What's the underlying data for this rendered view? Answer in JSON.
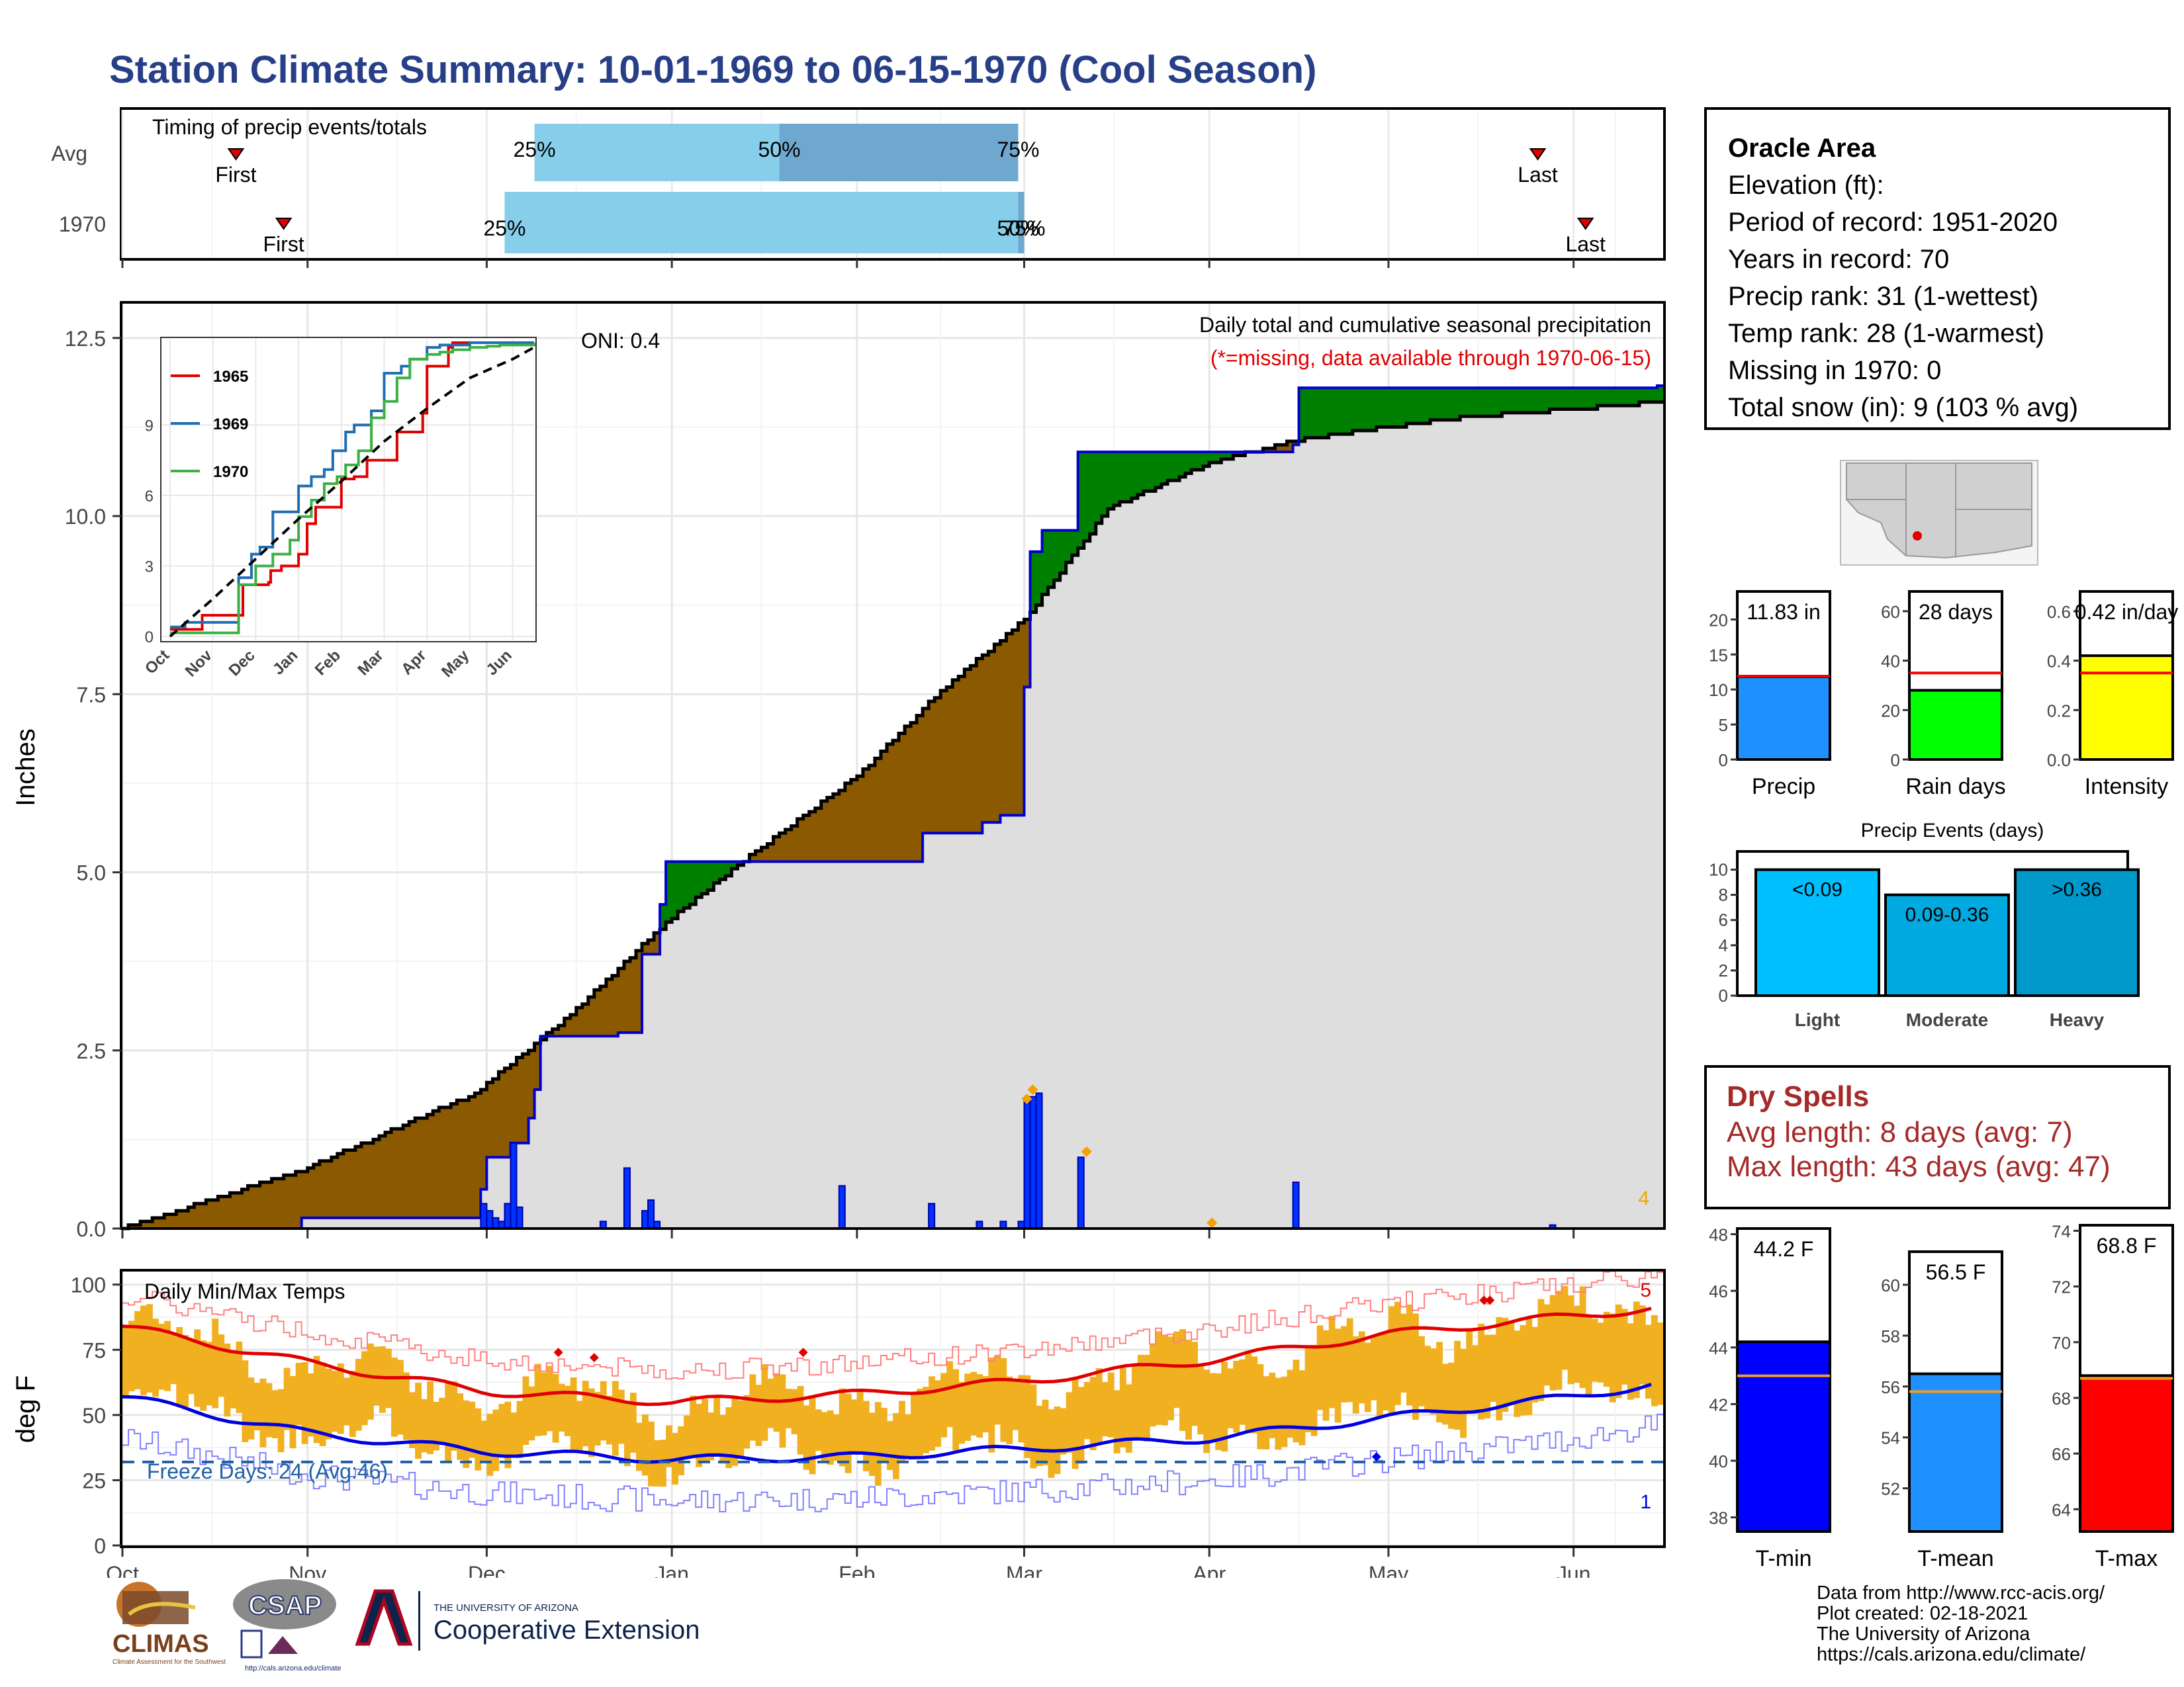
{
  "title": "Station Climate Summary: 10-01-1969 to 06-15-1970 (Cool Season)",
  "timing": {
    "label": "Timing of precip events/totals",
    "rows": [
      {
        "name": "Avg",
        "first_date": "1969-10-20",
        "last_date": "1970-05-26",
        "p25_date": "1969-12-09",
        "p50_date": "1970-01-19",
        "p75_date": "1970-02-28",
        "labels": [
          "25%",
          "50%",
          "75%"
        ],
        "first_label": "First",
        "last_label": "Last"
      },
      {
        "name": "1970",
        "first_date": "1969-10-28",
        "last_date": "1970-06-03",
        "p25_date": "1969-12-04",
        "p50_date": "1970-02-28",
        "p75_date": "1970-03-01",
        "labels": [
          "25%",
          "50%",
          "75%"
        ],
        "first_label": "First",
        "last_label": "Last"
      }
    ],
    "colors": {
      "light": "#87ceeb",
      "dark": "#6fa8ce",
      "marker": "#e00000"
    }
  },
  "axes_months": [
    "Oct",
    "Nov",
    "Dec",
    "Jan",
    "Feb",
    "Mar",
    "Apr",
    "May",
    "Jun"
  ],
  "precip": {
    "ylabel": "Inches",
    "yticks": [
      "0.0",
      "2.5",
      "5.0",
      "7.5",
      "10.0",
      "12.5"
    ],
    "ylim": [
      0,
      13
    ],
    "caption": "Daily total and cumulative seasonal precipitation",
    "missing_note": "(*=missing, data available through 1970-06-15)",
    "oni": "ONI: 0.4",
    "corner_count": "4",
    "colors": {
      "observed": "#0000cc",
      "average": "#000000",
      "above": "#008000",
      "below": "#8b5a00",
      "fill": "#dedede",
      "daily_bar": "#0033ff",
      "marker": "#f5a000"
    }
  },
  "chart_data": [
    {
      "type": "area",
      "title": "Daily total and cumulative seasonal precipitation",
      "ylabel": "Inches",
      "ylim": [
        0,
        13
      ],
      "x_range": [
        "1969-10-01",
        "1970-06-15"
      ],
      "series": [
        {
          "name": "cumulative observed",
          "x": [
            "1969-10-01",
            "1969-10-31",
            "1969-11-29",
            "1969-11-30",
            "1969-12-01",
            "1969-12-05",
            "1969-12-07",
            "1969-12-08",
            "1969-12-09",
            "1969-12-10",
            "1969-12-19",
            "1969-12-23",
            "1969-12-24",
            "1969-12-27",
            "1969-12-30",
            "1969-12-31",
            "1970-02-11",
            "1970-02-12",
            "1970-02-22",
            "1970-02-25",
            "1970-02-28",
            "1970-03-01",
            "1970-03-02",
            "1970-03-04",
            "1970-03-09",
            "1970-03-10",
            "1970-03-11",
            "1970-04-02",
            "1970-04-15",
            "1970-04-16",
            "1970-06-15"
          ],
          "values": [
            0.0,
            0.15,
            0.15,
            0.55,
            1.0,
            1.2,
            1.2,
            1.55,
            1.95,
            2.7,
            2.7,
            2.75,
            2.75,
            3.85,
            4.55,
            5.15,
            5.15,
            5.55,
            5.7,
            5.8,
            5.8,
            7.6,
            9.5,
            9.8,
            9.8,
            10.9,
            10.9,
            10.9,
            11.0,
            11.8,
            11.83
          ]
        },
        {
          "name": "cumulative average",
          "x": [
            "1969-10-01",
            "1969-11-01",
            "1969-11-29",
            "1969-12-15",
            "1969-12-31",
            "1970-01-15",
            "1970-02-01",
            "1970-02-15",
            "1970-03-01",
            "1970-03-15",
            "1970-04-01",
            "1970-04-15",
            "1970-05-01",
            "1970-05-15",
            "1970-06-01",
            "1970-06-15"
          ],
          "values": [
            0.0,
            0.85,
            1.9,
            3.0,
            4.3,
            5.3,
            6.35,
            7.55,
            8.55,
            10.1,
            10.75,
            11.05,
            11.25,
            11.4,
            11.5,
            11.6
          ]
        }
      ],
      "daily_bars": {
        "x": [
          "1969-11-30",
          "1969-12-01",
          "1969-12-02",
          "1969-12-03",
          "1969-12-04",
          "1969-12-05",
          "1969-12-06",
          "1969-12-20",
          "1969-12-24",
          "1969-12-27",
          "1969-12-28",
          "1969-12-29",
          "1970-01-29",
          "1970-02-13",
          "1970-02-21",
          "1970-02-25",
          "1970-02-28",
          "1970-03-01",
          "1970-03-02",
          "1970-03-03",
          "1970-03-10",
          "1970-04-15",
          "1970-05-28"
        ],
        "values": [
          0.35,
          0.25,
          0.15,
          0.1,
          0.35,
          1.2,
          0.3,
          0.1,
          0.85,
          0.25,
          0.4,
          0.1,
          0.6,
          0.35,
          0.1,
          0.1,
          0.1,
          1.8,
          1.85,
          1.9,
          1.0,
          0.65,
          0.05
        ]
      }
    },
    {
      "type": "line",
      "title": "",
      "xlabel": "",
      "ylabel": "",
      "x_ticks": [
        "Oct",
        "Nov",
        "Dec",
        "Jan",
        "Feb",
        "Mar",
        "Apr",
        "May",
        "Jun"
      ],
      "y_ticks": [
        "0",
        "3",
        "6",
        "9"
      ],
      "ylim": [
        0,
        12.5
      ],
      "series": [
        {
          "name": "1965",
          "color": "#e00000",
          "x": [
            0,
            0.7,
            0.75,
            1.6,
            1.7,
            2.3,
            2.35,
            2.6,
            3.0,
            3.2,
            3.4,
            3.9,
            4.0,
            4.3,
            4.6,
            5.2,
            5.3,
            5.9,
            6.0,
            6.5,
            6.6,
            7.0,
            7.6,
            8.0,
            8.5
          ],
          "values": [
            0.3,
            0.3,
            0.9,
            0.9,
            2.2,
            2.3,
            2.8,
            3.0,
            3.5,
            4.8,
            5.5,
            5.5,
            6.7,
            6.8,
            7.5,
            7.5,
            8.7,
            9.5,
            11.5,
            12.3,
            12.5,
            12.5,
            12.5,
            12.5,
            12.5
          ]
        },
        {
          "name": "1969",
          "color": "#1f6eb4",
          "x": [
            0,
            0.35,
            1.2,
            1.6,
            1.9,
            2.1,
            2.4,
            2.6,
            3.0,
            3.3,
            3.6,
            3.8,
            4.1,
            4.3,
            4.7,
            5.0,
            5.4,
            5.6,
            6.0,
            6.3,
            7.0,
            8.5
          ],
          "values": [
            0.4,
            0.6,
            0.6,
            2.5,
            3.5,
            3.8,
            5.3,
            5.3,
            6.4,
            6.8,
            7.1,
            7.9,
            8.7,
            9.0,
            9.6,
            11.2,
            11.5,
            11.8,
            12.3,
            12.4,
            12.5,
            12.5
          ]
        },
        {
          "name": "1970",
          "color": "#3cb043",
          "x": [
            0,
            1.5,
            1.6,
            2.0,
            2.4,
            2.8,
            3.0,
            3.3,
            3.6,
            3.9,
            4.1,
            4.4,
            4.7,
            5.0,
            5.3,
            5.6,
            6.0,
            6.3,
            6.6,
            7.0,
            7.4,
            7.7,
            8.5
          ],
          "values": [
            0.15,
            0.15,
            2.2,
            3.0,
            3.5,
            4.1,
            5.1,
            5.8,
            6.5,
            6.8,
            7.3,
            7.9,
            9.3,
            10.0,
            11.0,
            11.8,
            12.0,
            12.1,
            12.2,
            12.3,
            12.35,
            12.4,
            12.5
          ]
        },
        {
          "name": "average",
          "color": "#000000",
          "x": [
            0,
            1,
            2,
            3,
            4,
            5,
            6,
            7,
            8,
            8.5
          ],
          "values": [
            0.0,
            1.6,
            3.3,
            5.0,
            6.6,
            8.3,
            9.7,
            11.0,
            11.8,
            12.3
          ]
        }
      ]
    },
    {
      "type": "bar",
      "title": "Daily Min/Max Temps",
      "ylabel": "deg F",
      "ylim": [
        0,
        105
      ],
      "y_ticks": [
        "0",
        "25",
        "50",
        "75",
        "100"
      ],
      "x_range": [
        "1969-10-01",
        "1970-06-15"
      ],
      "series": [
        {
          "name": "normal max",
          "color": "#e00000",
          "x": [
            "1969-10-01",
            "1969-11-01",
            "1969-12-01",
            "1970-01-01",
            "1970-02-01",
            "1970-03-01",
            "1970-04-01",
            "1970-05-01",
            "1970-06-01",
            "1970-06-15"
          ],
          "values": [
            84,
            70,
            59,
            55,
            58,
            63,
            71,
            81,
            88,
            91
          ]
        },
        {
          "name": "normal min",
          "color": "#0000e0",
          "x": [
            "1969-10-01",
            "1969-11-01",
            "1969-12-01",
            "1970-01-01",
            "1970-02-01",
            "1970-03-01",
            "1970-04-01",
            "1970-05-01",
            "1970-06-01",
            "1970-06-15"
          ],
          "values": [
            57,
            43,
            36,
            33,
            34,
            37,
            41,
            49,
            57,
            62
          ]
        }
      ],
      "freeze_threshold": 32
    },
    {
      "type": "bar",
      "categories": [
        "Precip"
      ],
      "values": [
        11.83
      ],
      "average": 11.9,
      "ylim": [
        0,
        24
      ],
      "y_ticks": [
        "0",
        "5",
        "10",
        "15",
        "20"
      ],
      "data_label": "11.83 in",
      "color": "#1e90ff"
    },
    {
      "type": "bar",
      "categories": [
        "Rain days"
      ],
      "values": [
        28
      ],
      "average": 35,
      "ylim": [
        0,
        68
      ],
      "y_ticks": [
        "0",
        "20",
        "40",
        "60"
      ],
      "data_label": "28 days",
      "color": "#00ff00"
    },
    {
      "type": "bar",
      "categories": [
        "Intensity"
      ],
      "values": [
        0.42
      ],
      "average": 0.35,
      "ylim": [
        0,
        0.68
      ],
      "y_ticks": [
        "0.0",
        "0.2",
        "0.4",
        "0.6"
      ],
      "data_label": "0.42 in/day",
      "color": "#ffff00"
    },
    {
      "type": "bar",
      "title": "Precip Events (days)",
      "categories": [
        "Light",
        "Moderate",
        "Heavy"
      ],
      "values": [
        10,
        8,
        10
      ],
      "ylim": [
        0,
        10.5
      ],
      "y_ticks": [
        "0",
        "2",
        "4",
        "6",
        "8",
        "10"
      ],
      "data_labels": [
        "<0.09",
        "0.09-0.36",
        ">0.36"
      ]
    },
    {
      "type": "bar",
      "categories": [
        "T-min"
      ],
      "values": [
        44.2
      ],
      "average": 43,
      "ylim": [
        37.5,
        48.2
      ],
      "y_ticks": [
        "38",
        "40",
        "42",
        "44",
        "46",
        "48"
      ],
      "data_label": "44.2 F",
      "color": "#0000ff"
    },
    {
      "type": "bar",
      "categories": [
        "T-mean"
      ],
      "values": [
        56.5
      ],
      "average": 55.8,
      "ylim": [
        50.3,
        61.3
      ],
      "y_ticks": [
        "52",
        "54",
        "56",
        "58",
        "60"
      ],
      "data_label": "56.5 F",
      "color": "#1e90ff"
    },
    {
      "type": "bar",
      "categories": [
        "T-max"
      ],
      "values": [
        68.8
      ],
      "average": 68.7,
      "ylim": [
        63.2,
        74.2
      ],
      "y_ticks": [
        "64",
        "66",
        "68",
        "70",
        "72",
        "74"
      ],
      "data_label": "68.8 F",
      "color": "#ff0000"
    }
  ],
  "temps": {
    "caption": "Daily Min/Max Temps",
    "ylabel": "deg F",
    "freeze_label": "Freeze Days: 24 (Avg:46)",
    "record_high_count": "5",
    "record_low_count": "1",
    "colors": {
      "bars": "#f0b020",
      "max_line": "#e00000",
      "min_line": "#0000e0",
      "record_max": "#ff8080",
      "record_min": "#8080ff",
      "freeze": "#1f5fa8"
    }
  },
  "info": {
    "name": "Oracle Area",
    "lines": [
      "Elevation (ft):",
      "Period of record: 1951-2020",
      "Years in record: 70",
      "Precip rank: 31 (1-wettest)",
      "Temp rank: 28 (1-warmest)",
      "Missing in 1970: 0",
      "Total snow (in): 9 (103 % avg)"
    ]
  },
  "dry_spells": {
    "heading": "Dry Spells",
    "avg": "Avg length: 8 days (avg: 7)",
    "max": "Max length: 43 days (avg: 47)"
  },
  "credits": [
    "Data from http://www.rcc-acis.org/",
    "Plot created: 02-18-2021",
    "The University of Arizona",
    "https://cals.arizona.edu/climate/"
  ],
  "logos": {
    "climas": "CLIMAS",
    "climas_sub": "Climate Assessment for the Southwest",
    "csap": "CSAP",
    "csap_url": "http://cals.arizona.edu/climate",
    "ua_top": "THE UNIVERSITY OF ARIZONA",
    "ua_name": "Cooperative Extension"
  }
}
